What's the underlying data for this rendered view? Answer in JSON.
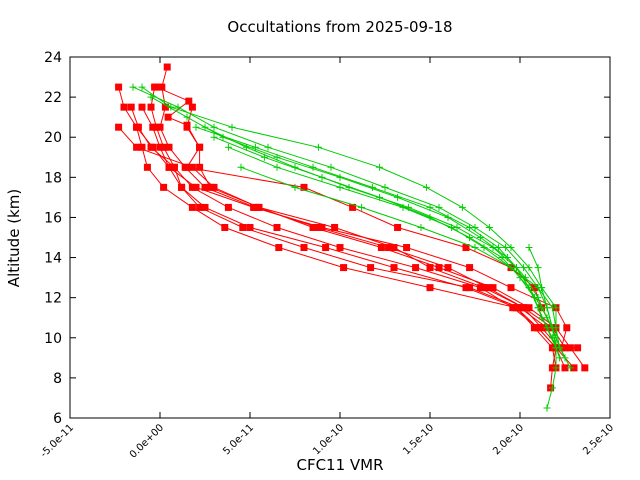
{
  "chart_data": {
    "type": "line",
    "title": "Occultations from 2025-09-18",
    "xlabel": "CFC11 VMR",
    "ylabel": "Altitude (km)",
    "xlim": [
      -5e-11,
      2.5e-10
    ],
    "ylim": [
      6,
      24
    ],
    "x_ticks": [
      -5e-11,
      0.0,
      5e-11,
      1e-10,
      1.5e-10,
      2e-10,
      2.5e-10
    ],
    "x_tick_labels": [
      "-5.0e-11",
      "0.0e+00",
      "5.0e-11",
      "1.0e-10",
      "1.5e-10",
      "2.0e-10",
      "2.5e-10"
    ],
    "y_ticks": [
      6,
      8,
      10,
      12,
      14,
      16,
      18,
      20,
      22,
      24
    ],
    "y_tick_labels": [
      "6",
      "8",
      "10",
      "12",
      "14",
      "16",
      "18",
      "20",
      "22",
      "24"
    ],
    "grid": false,
    "colors": {
      "red_series": "#ff0000",
      "green_series": "#00cc00",
      "frame": "#000000"
    },
    "series": [
      {
        "name": "red-1",
        "color": "#ff0000",
        "marker": "square",
        "points": [
          [
            -2.3e-11,
            22.5
          ],
          [
            -2e-11,
            21.5
          ],
          [
            -1.3e-11,
            20.5
          ],
          [
            -1e-11,
            19.5
          ],
          [
            -7e-12,
            18.5
          ],
          [
            2e-12,
            17.5
          ],
          [
            1.8e-11,
            16.5
          ],
          [
            3.6e-11,
            15.5
          ],
          [
            6.6e-11,
            14.5
          ],
          [
            1.02e-10,
            13.5
          ],
          [
            1.5e-10,
            12.5
          ],
          [
            1.98e-10,
            11.5
          ],
          [
            2.08e-10,
            10.5
          ],
          [
            2.18e-10,
            9.5
          ],
          [
            2.2e-10,
            8.5
          ]
        ]
      },
      {
        "name": "red-2",
        "color": "#ff0000",
        "marker": "square",
        "points": [
          [
            -3e-12,
            22.5
          ],
          [
            -5e-12,
            21.5
          ],
          [
            -2e-12,
            20.5
          ],
          [
            2e-12,
            19.5
          ],
          [
            8e-12,
            18.5
          ],
          [
            1.2e-11,
            17.5
          ],
          [
            2.2e-11,
            16.5
          ],
          [
            4.6e-11,
            15.5
          ],
          [
            8e-11,
            14.5
          ],
          [
            1.17e-10,
            13.5
          ],
          [
            1.72e-10,
            12.5
          ],
          [
            2e-10,
            11.5
          ],
          [
            2.15e-10,
            10.5
          ],
          [
            2.2e-10,
            9.5
          ],
          [
            2.25e-10,
            8.5
          ]
        ]
      },
      {
        "name": "red-3",
        "color": "#ff0000",
        "marker": "square",
        "points": [
          [
            -1e-11,
            21.5
          ],
          [
            -4e-12,
            20.5
          ],
          [
            0.0,
            19.5
          ],
          [
            5e-12,
            18.5
          ],
          [
            1.2e-11,
            17.5
          ],
          [
            2.5e-11,
            16.5
          ],
          [
            5e-11,
            15.5
          ],
          [
            9.2e-11,
            14.5
          ],
          [
            1.3e-10,
            13.5
          ],
          [
            1.7e-10,
            12.5
          ],
          [
            1.98e-10,
            11.5
          ],
          [
            2.1e-10,
            10.5
          ],
          [
            2.2e-10,
            9.5
          ],
          [
            2.3e-10,
            8.5
          ]
        ]
      },
      {
        "name": "red-4",
        "color": "#ff0000",
        "marker": "square",
        "points": [
          [
            -1.6e-11,
            21.5
          ],
          [
            -1.2e-11,
            20.5
          ],
          [
            -5e-12,
            19.5
          ],
          [
            8e-12,
            18.5
          ],
          [
            1.8e-11,
            17.5
          ],
          [
            3.8e-11,
            16.5
          ],
          [
            6.5e-11,
            15.5
          ],
          [
            1e-10,
            14.5
          ],
          [
            1.42e-10,
            13.5
          ],
          [
            1.78e-10,
            12.5
          ],
          [
            1.96e-10,
            11.5
          ],
          [
            2.1e-10,
            10.5
          ],
          [
            2.2e-10,
            9.5
          ],
          [
            2.18e-10,
            8.5
          ],
          [
            2.17e-10,
            7.5
          ]
        ]
      },
      {
        "name": "red-5",
        "color": "#ff0000",
        "marker": "square",
        "points": [
          [
            1.8e-11,
            21.5
          ],
          [
            1.5e-11,
            20.5
          ],
          [
            2.2e-11,
            19.5
          ],
          [
            2.2e-11,
            18.5
          ],
          [
            2.8e-11,
            17.5
          ],
          [
            5.5e-11,
            16.5
          ],
          [
            8.5e-11,
            15.5
          ],
          [
            1.23e-10,
            14.5
          ],
          [
            1.55e-10,
            13.5
          ],
          [
            1.85e-10,
            12.5
          ],
          [
            2.05e-10,
            11.5
          ],
          [
            2.2e-10,
            10.5
          ],
          [
            2.28e-10,
            9.5
          ],
          [
            2.36e-10,
            8.5
          ]
        ]
      },
      {
        "name": "red-6",
        "color": "#ff0000",
        "marker": "square",
        "points": [
          [
            4e-12,
            23.5
          ],
          [
            1e-12,
            22.5
          ],
          [
            3e-12,
            21.5
          ],
          [
            0.0,
            20.5
          ],
          [
            5e-12,
            19.5
          ],
          [
            1.4e-11,
            18.5
          ],
          [
            2.5e-11,
            17.5
          ],
          [
            5.3e-11,
            16.5
          ],
          [
            8.8e-11,
            15.5
          ],
          [
            1.27e-10,
            14.5
          ],
          [
            1.6e-10,
            13.5
          ],
          [
            1.82e-10,
            12.5
          ],
          [
            2.02e-10,
            11.5
          ],
          [
            2.18e-10,
            10.5
          ],
          [
            2.25e-10,
            9.5
          ]
        ]
      },
      {
        "name": "red-7",
        "color": "#ff0000",
        "marker": "square",
        "points": [
          [
            -2.3e-11,
            20.5
          ],
          [
            -1.3e-11,
            19.5
          ],
          [
            1.8e-11,
            18.5
          ],
          [
            3e-11,
            17.5
          ],
          [
            5.5e-11,
            16.5
          ],
          [
            9.7e-11,
            15.5
          ],
          [
            1.3e-10,
            14.5
          ],
          [
            1.5e-10,
            13.5
          ],
          [
            1.8e-10,
            12.5
          ],
          [
            2.02e-10,
            11.5
          ],
          [
            2.12e-10,
            10.5
          ],
          [
            2.22e-10,
            9.5
          ],
          [
            2.32e-10,
            9.5
          ]
        ]
      },
      {
        "name": "red-8",
        "color": "#ff0000",
        "marker": "square",
        "points": [
          [
            -1.3e-11,
            20.5
          ],
          [
            -4e-12,
            19.5
          ],
          [
            5e-12,
            18.5
          ],
          [
            2e-11,
            17.5
          ],
          [
            5.2e-11,
            16.5
          ],
          [
            9e-11,
            15.5
          ],
          [
            1.37e-10,
            14.5
          ],
          [
            1.72e-10,
            13.5
          ],
          [
            1.95e-10,
            12.5
          ],
          [
            2.2e-10,
            11.5
          ],
          [
            2.26e-10,
            10.5
          ],
          [
            2.23e-10,
            9.5
          ]
        ]
      },
      {
        "name": "red-9",
        "color": "#ff0000",
        "marker": "square",
        "points": [
          [
            -2e-12,
            22.5
          ],
          [
            1.6e-11,
            21.8
          ],
          [
            4.5e-12,
            21.0
          ],
          [
            1.5e-11,
            20.6
          ],
          [
            2.2e-11,
            19.5
          ],
          [
            1.5e-11,
            18.5
          ],
          [
            8e-11,
            17.5
          ],
          [
            1.07e-10,
            16.5
          ],
          [
            1.32e-10,
            15.5
          ],
          [
            1.7e-10,
            14.5
          ],
          [
            1.95e-10,
            13.5
          ],
          [
            2.08e-10,
            12.5
          ],
          [
            2.12e-10,
            11.5
          ],
          [
            2.18e-10,
            10.5
          ],
          [
            2.2e-10,
            9.5
          ]
        ]
      },
      {
        "name": "green-1",
        "color": "#00cc00",
        "marker": "plus",
        "points": [
          [
            -1e-11,
            22.5
          ],
          [
            6e-12,
            21.5
          ],
          [
            4e-11,
            20.5
          ],
          [
            8.8e-11,
            19.5
          ],
          [
            1.22e-10,
            18.5
          ],
          [
            1.48e-10,
            17.5
          ],
          [
            1.68e-10,
            16.5
          ],
          [
            1.83e-10,
            15.5
          ],
          [
            1.95e-10,
            14.5
          ],
          [
            2.05e-10,
            13.5
          ],
          [
            2.12e-10,
            12.5
          ],
          [
            2.2e-10,
            11.5
          ],
          [
            2.2e-10,
            10.5
          ],
          [
            2.22e-10,
            9.5
          ],
          [
            2.28e-10,
            8.5
          ]
        ]
      },
      {
        "name": "green-2",
        "color": "#00cc00",
        "marker": "plus",
        "points": [
          [
            -1.5e-11,
            22.5
          ],
          [
            1e-11,
            21.5
          ],
          [
            3e-11,
            20.5
          ],
          [
            6e-11,
            19.5
          ],
          [
            9.5e-11,
            18.5
          ],
          [
            1.25e-10,
            17.5
          ],
          [
            1.55e-10,
            16.5
          ],
          [
            1.75e-10,
            15.5
          ],
          [
            1.92e-10,
            14.5
          ],
          [
            2.02e-10,
            13.5
          ],
          [
            2.1e-10,
            12.5
          ],
          [
            2.15e-10,
            11.5
          ],
          [
            2.18e-10,
            10.5
          ],
          [
            2.22e-10,
            9.5
          ]
        ]
      },
      {
        "name": "green-3",
        "color": "#00cc00",
        "marker": "plus",
        "points": [
          [
            -5e-12,
            22.0
          ],
          [
            1.5e-11,
            21.0
          ],
          [
            3.5e-11,
            20.0
          ],
          [
            6.5e-11,
            19.0
          ],
          [
            1e-10,
            18.0
          ],
          [
            1.32e-10,
            17.0
          ],
          [
            1.6e-10,
            16.0
          ],
          [
            1.78e-10,
            15.0
          ],
          [
            1.93e-10,
            14.0
          ],
          [
            2.03e-10,
            13.0
          ],
          [
            2.1e-10,
            12.0
          ],
          [
            2.15e-10,
            11.0
          ],
          [
            2.2e-10,
            10.0
          ],
          [
            2.25e-10,
            9.0
          ]
        ]
      },
      {
        "name": "green-4",
        "color": "#00cc00",
        "marker": "plus",
        "points": [
          [
            2e-11,
            20.5
          ],
          [
            5.3e-11,
            19.5
          ],
          [
            8.5e-11,
            18.5
          ],
          [
            1.18e-10,
            17.5
          ],
          [
            1.5e-10,
            16.5
          ],
          [
            1.72e-10,
            15.5
          ],
          [
            1.88e-10,
            14.5
          ],
          [
            1.98e-10,
            13.5
          ],
          [
            2.05e-10,
            12.5
          ],
          [
            2.12e-10,
            11.5
          ],
          [
            2.18e-10,
            10.5
          ],
          [
            2.2e-10,
            9.5
          ]
        ]
      },
      {
        "name": "green-5",
        "color": "#00cc00",
        "marker": "plus",
        "points": [
          [
            2.5e-11,
            20.5
          ],
          [
            4.8e-11,
            19.5
          ],
          [
            7.5e-11,
            18.5
          ],
          [
            1.05e-10,
            17.5
          ],
          [
            1.38e-10,
            16.5
          ],
          [
            1.65e-10,
            15.5
          ],
          [
            1.85e-10,
            14.5
          ],
          [
            1.98e-10,
            13.5
          ],
          [
            2.05e-10,
            12.5
          ],
          [
            2.1e-10,
            11.5
          ],
          [
            2.15e-10,
            10.5
          ],
          [
            2.2e-10,
            9.5
          ]
        ]
      },
      {
        "name": "green-6",
        "color": "#00cc00",
        "marker": "plus",
        "points": [
          [
            3e-11,
            20.0
          ],
          [
            5.8e-11,
            19.0
          ],
          [
            9e-11,
            18.0
          ],
          [
            1.22e-10,
            17.0
          ],
          [
            1.5e-10,
            16.0
          ],
          [
            1.72e-10,
            15.0
          ],
          [
            1.9e-10,
            14.0
          ],
          [
            2e-10,
            13.0
          ],
          [
            2.08e-10,
            12.0
          ],
          [
            2.12e-10,
            11.0
          ],
          [
            2.18e-10,
            10.0
          ],
          [
            2.22e-10,
            9.0
          ]
        ]
      },
      {
        "name": "green-7",
        "color": "#00cc00",
        "marker": "plus",
        "points": [
          [
            3.8e-11,
            19.5
          ],
          [
            6.5e-11,
            18.5
          ],
          [
            1e-10,
            17.5
          ],
          [
            1.35e-10,
            16.5
          ],
          [
            1.62e-10,
            15.5
          ],
          [
            1.8e-10,
            14.5
          ],
          [
            1.95e-10,
            13.5
          ],
          [
            2.05e-10,
            12.5
          ],
          [
            2.1e-10,
            11.5
          ],
          [
            2.15e-10,
            10.5
          ],
          [
            2.2e-10,
            9.5
          ]
        ]
      },
      {
        "name": "green-8",
        "color": "#00cc00",
        "marker": "plus",
        "points": [
          [
            4.5e-11,
            18.5
          ],
          [
            7.5e-11,
            17.5
          ],
          [
            1.12e-10,
            16.5
          ],
          [
            1.45e-10,
            15.5
          ],
          [
            1.75e-10,
            14.5
          ],
          [
            1.95e-10,
            13.5
          ],
          [
            2.1e-10,
            12.5
          ],
          [
            2.18e-10,
            11.5
          ],
          [
            2.2e-10,
            10.5
          ],
          [
            2.2e-10,
            9.5
          ]
        ]
      },
      {
        "name": "green-9",
        "color": "#00cc00",
        "marker": "plus",
        "points": [
          [
            2.05e-10,
            14.5
          ],
          [
            2.1e-10,
            13.5
          ],
          [
            2.12e-10,
            12.5
          ],
          [
            2.15e-10,
            11.5
          ],
          [
            2.18e-10,
            10.5
          ],
          [
            2.2e-10,
            9.5
          ],
          [
            2.2e-10,
            8.5
          ],
          [
            2.18e-10,
            7.5
          ],
          [
            2.15e-10,
            6.5
          ]
        ]
      }
    ]
  }
}
